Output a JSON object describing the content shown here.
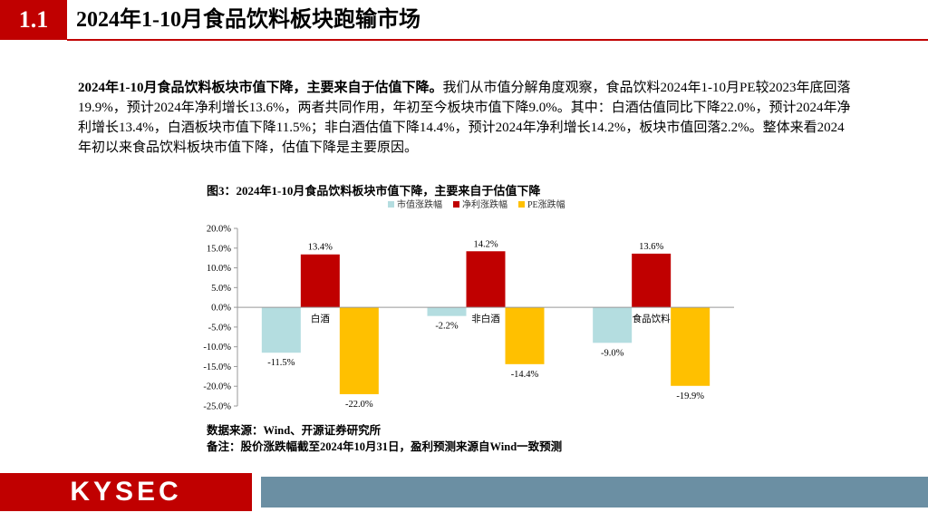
{
  "header": {
    "section_number": "1.1",
    "title": "2024年1-10月食品饮料板块跑输市场"
  },
  "body": {
    "lead_bold": "2024年1-10月食品饮料板块市值下降，主要来自于估值下降。",
    "lead_rest": "我们从市值分解角度观察，食品饮料2024年1-10月PE较2023年底回落19.9%，预计2024年净利增长13.6%，两者共同作用，年初至今板块市值下降9.0%。其中：白酒估值同比下降22.0%，预计2024年净利增长13.4%，白酒板块市值下降11.5%；非白酒估值下降14.4%，预计2024年净利增长14.2%，板块市值回落2.2%。整体来看2024年初以来食品饮料板块市值下降，估值下降是主要原因。"
  },
  "figure": {
    "title": "图3：2024年1-10月食品饮料板块市值下降，主要来自于估值下降",
    "source": "数据来源：Wind、开源证券研究所",
    "note": "备注：股价涨跌幅截至2024年10月31日，盈利预测来源自Wind一致预测"
  },
  "chart_data": {
    "type": "bar",
    "title": "图3：2024年1-10月食品饮料板块市值下降，主要来自于估值下降",
    "categories": [
      "白酒",
      "非白酒",
      "食品饮料"
    ],
    "series": [
      {
        "name": "市值涨跌幅",
        "color": "#b4dde0",
        "values": [
          -11.5,
          -2.2,
          -9.0
        ],
        "labels": [
          "-11.5%",
          "-2.2%",
          "-9.0%"
        ]
      },
      {
        "name": "净利涨跌幅",
        "color": "#c00000",
        "values": [
          13.4,
          14.2,
          13.6
        ],
        "labels": [
          "13.4%",
          "14.2%",
          "13.6%"
        ]
      },
      {
        "name": "PE涨跌幅",
        "color": "#ffc000",
        "values": [
          -22.0,
          -14.4,
          -19.9
        ],
        "labels": [
          "-22.0%",
          "-14.4%",
          "-19.9%"
        ]
      }
    ],
    "ylim": [
      -25,
      20
    ],
    "yticks": [
      20,
      15,
      10,
      5,
      0,
      -5,
      -10,
      -15,
      -20,
      -25
    ],
    "ytick_labels": [
      "20.0%",
      "15.0%",
      "10.0%",
      "5.0%",
      "0.0%",
      "-5.0%",
      "-10.0%",
      "-15.0%",
      "-20.0%",
      "-25.0%"
    ],
    "legend_position": "top-center",
    "grid": false,
    "xlabel": "",
    "ylabel": ""
  },
  "footer": {
    "logo": "KYSEC"
  }
}
